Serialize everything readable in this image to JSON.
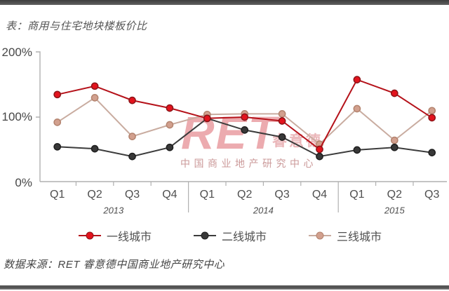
{
  "page": {
    "top_bar_color": "#484848",
    "bottom_bar_color": "#585858",
    "background": "#ffffff"
  },
  "chart_data": {
    "type": "line",
    "title": "表：商用与住宅地块楼板价比",
    "unit": "percent",
    "ylim": [
      0,
      200
    ],
    "y_ticks": [
      "0%",
      "100%",
      "200%"
    ],
    "grid": false,
    "legend_position": "bottom",
    "axis_color": "#b0b0b0",
    "label_color": "#4f4f4f",
    "x_groups": [
      {
        "year": "2013",
        "quarters": [
          "Q1",
          "Q2",
          "Q3",
          "Q4"
        ]
      },
      {
        "year": "2014",
        "quarters": [
          "Q1",
          "Q2",
          "Q3",
          "Q4"
        ]
      },
      {
        "year": "2015",
        "quarters": [
          "Q1",
          "Q2",
          "Q3"
        ]
      }
    ],
    "categories": [
      "2013-Q1",
      "2013-Q2",
      "2013-Q3",
      "2013-Q4",
      "2014-Q1",
      "2014-Q2",
      "2014-Q3",
      "2014-Q4",
      "2015-Q1",
      "2015-Q2",
      "2015-Q3"
    ],
    "series": [
      {
        "key": "tier1",
        "name": "一线城市",
        "line_color": "#b5121a",
        "marker_fill": "#e3131d",
        "marker_stroke": "#8c1418",
        "values": [
          135,
          148,
          126,
          114,
          98,
          100,
          94,
          50,
          158,
          137,
          99
        ]
      },
      {
        "key": "tier2",
        "name": "二线城市",
        "line_color": "#3c3c3c",
        "marker_fill": "#383838",
        "marker_stroke": "#1e1e1e",
        "values": [
          54,
          51,
          39,
          53,
          98,
          80,
          69,
          39,
          49,
          53,
          45
        ]
      },
      {
        "key": "tier3",
        "name": "三线城市",
        "line_color": "#c9aca0",
        "marker_fill": "#d2a08e",
        "marker_stroke": "#b3836e",
        "values": [
          92,
          130,
          70,
          88,
          104,
          105,
          105,
          58,
          113,
          64,
          110
        ]
      }
    ]
  },
  "watermark": {
    "brand": "RET",
    "brand_suffix": "睿意德",
    "subtitle": "中国商业地产研究中心"
  },
  "source": {
    "text": "数据来源：RET 睿意德中国商业地产研究中心"
  }
}
